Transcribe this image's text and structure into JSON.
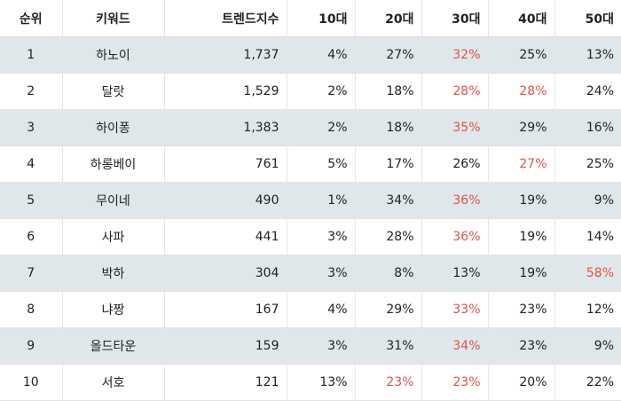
{
  "table": {
    "headers": [
      "순위",
      "키워드",
      "트렌드지수",
      "10대",
      "20대",
      "30대",
      "40대",
      "50대"
    ],
    "rows": [
      {
        "rank": "1",
        "keyword": "하노이",
        "index": "1,737",
        "ages": [
          "4%",
          "27%",
          "32%",
          "25%",
          "13%"
        ],
        "highlight": [
          false,
          false,
          true,
          false,
          false
        ]
      },
      {
        "rank": "2",
        "keyword": "달랏",
        "index": "1,529",
        "ages": [
          "2%",
          "18%",
          "28%",
          "28%",
          "24%"
        ],
        "highlight": [
          false,
          false,
          true,
          true,
          false
        ]
      },
      {
        "rank": "3",
        "keyword": "하이퐁",
        "index": "1,383",
        "ages": [
          "2%",
          "18%",
          "35%",
          "29%",
          "16%"
        ],
        "highlight": [
          false,
          false,
          true,
          false,
          false
        ]
      },
      {
        "rank": "4",
        "keyword": "하롱베이",
        "index": "761",
        "ages": [
          "5%",
          "17%",
          "26%",
          "27%",
          "25%"
        ],
        "highlight": [
          false,
          false,
          false,
          true,
          false
        ]
      },
      {
        "rank": "5",
        "keyword": "무이네",
        "index": "490",
        "ages": [
          "1%",
          "34%",
          "36%",
          "19%",
          "9%"
        ],
        "highlight": [
          false,
          false,
          true,
          false,
          false
        ]
      },
      {
        "rank": "6",
        "keyword": "사파",
        "index": "441",
        "ages": [
          "3%",
          "28%",
          "36%",
          "19%",
          "14%"
        ],
        "highlight": [
          false,
          false,
          true,
          false,
          false
        ]
      },
      {
        "rank": "7",
        "keyword": "박하",
        "index": "304",
        "ages": [
          "3%",
          "8%",
          "13%",
          "19%",
          "58%"
        ],
        "highlight": [
          false,
          false,
          false,
          false,
          true
        ]
      },
      {
        "rank": "8",
        "keyword": "냐짱",
        "index": "167",
        "ages": [
          "4%",
          "29%",
          "33%",
          "23%",
          "12%"
        ],
        "highlight": [
          false,
          false,
          true,
          false,
          false
        ]
      },
      {
        "rank": "9",
        "keyword": "올드타운",
        "index": "159",
        "ages": [
          "3%",
          "31%",
          "34%",
          "23%",
          "9%"
        ],
        "highlight": [
          false,
          false,
          true,
          false,
          false
        ]
      },
      {
        "rank": "10",
        "keyword": "서호",
        "index": "121",
        "ages": [
          "13%",
          "23%",
          "23%",
          "20%",
          "22%"
        ],
        "highlight": [
          false,
          true,
          true,
          false,
          false
        ]
      }
    ]
  },
  "colors": {
    "row_stripe": "#dfe7ea",
    "highlight_text": "#e0524a",
    "text": "#222222"
  }
}
